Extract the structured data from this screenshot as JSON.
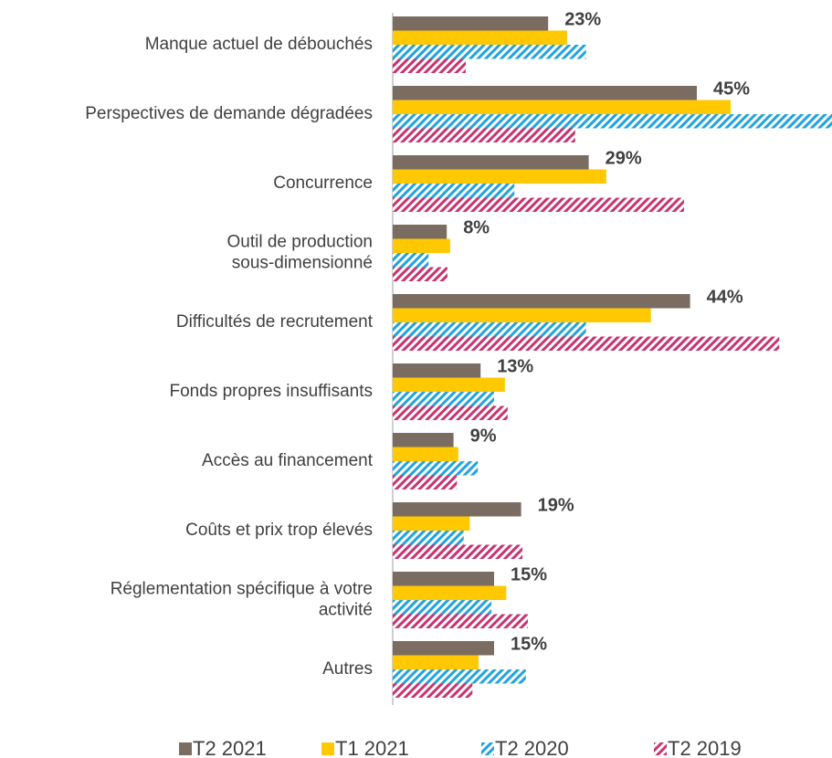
{
  "chart_data": {
    "type": "hbar",
    "categories": [
      "Manque actuel de débouchés",
      "Perspectives de demande dégradées",
      "Concurrence",
      "Outil de production\nsous-dimensionné",
      "Difficultés de recrutement",
      "Fonds propres insuffisants",
      "Accès au financement",
      "Coûts et prix trop élevés",
      "Réglementation spécifique à votre\nactivité",
      "Autres"
    ],
    "series": [
      {
        "name": "T2 2021",
        "color": "#7a6c60",
        "hatch": false,
        "values": [
          23,
          45,
          29,
          8,
          44,
          13,
          9,
          19,
          15,
          15
        ],
        "value_labels": [
          "23%",
          "45%",
          "29%",
          "8%",
          "44%",
          "13%",
          "9%",
          "19%",
          "15%",
          "15%"
        ]
      },
      {
        "name": "T1 2021",
        "color": "#ffc800",
        "hatch": false,
        "values": [
          25.8,
          50,
          31.6,
          8.5,
          38.2,
          16.6,
          9.7,
          11.4,
          16.8,
          12.7
        ]
      },
      {
        "name": "T2 2020",
        "color": "#1fa3dc",
        "hatch": true,
        "values": [
          28.6,
          65,
          18,
          5.3,
          28.6,
          15,
          12.6,
          10.5,
          14.6,
          19.7
        ]
      },
      {
        "name": "T2 2019",
        "color": "#c9326f",
        "hatch": true,
        "values": [
          10.8,
          27,
          43.1,
          8.1,
          57.2,
          17,
          9.5,
          19.2,
          20,
          11.8
        ]
      }
    ],
    "xlim": [
      0,
      65
    ],
    "legend": "bottom"
  }
}
